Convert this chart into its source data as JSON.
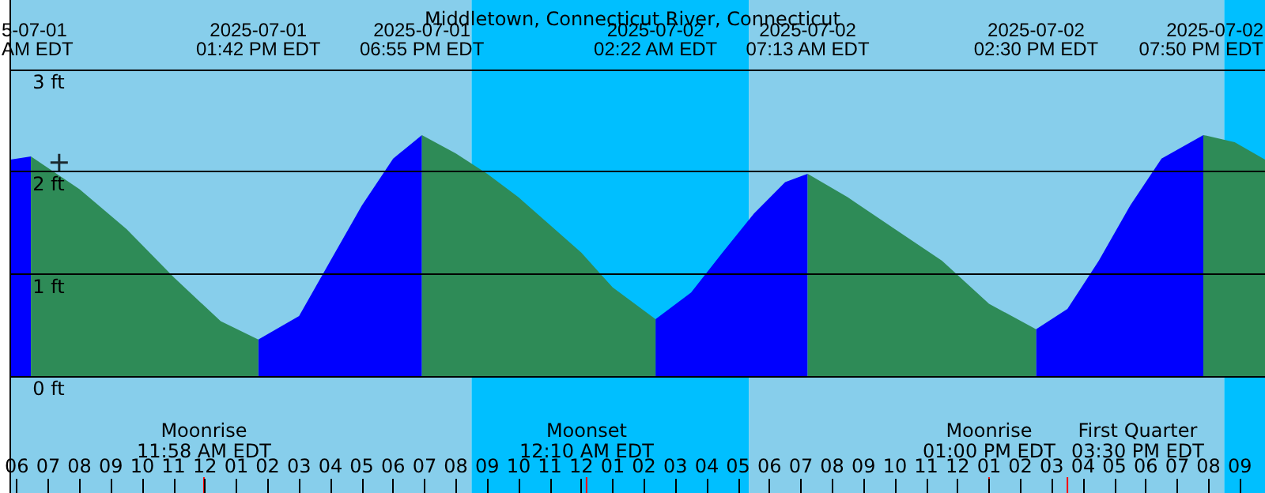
{
  "chart_data": {
    "type": "area",
    "title": "Middletown, Connecticut River, Connecticut",
    "xlim": [
      "2025-07-01T05:48",
      "2025-07-02T21:48"
    ],
    "xticks": [
      {
        "value": "2025-07-01T06:00",
        "label": "06"
      },
      {
        "value": "2025-07-01T07:00",
        "label": "07"
      },
      {
        "value": "2025-07-01T08:00",
        "label": "08"
      },
      {
        "value": "2025-07-01T09:00",
        "label": "09"
      },
      {
        "value": "2025-07-01T10:00",
        "label": "10"
      },
      {
        "value": "2025-07-01T11:00",
        "label": "11"
      },
      {
        "value": "2025-07-01T12:00",
        "label": "12"
      },
      {
        "value": "2025-07-01T13:00",
        "label": "01"
      },
      {
        "value": "2025-07-01T14:00",
        "label": "02"
      },
      {
        "value": "2025-07-01T15:00",
        "label": "03"
      },
      {
        "value": "2025-07-01T16:00",
        "label": "04"
      },
      {
        "value": "2025-07-01T17:00",
        "label": "05"
      },
      {
        "value": "2025-07-01T18:00",
        "label": "06"
      },
      {
        "value": "2025-07-01T19:00",
        "label": "07"
      },
      {
        "value": "2025-07-01T20:00",
        "label": "08"
      },
      {
        "value": "2025-07-01T21:00",
        "label": "09"
      },
      {
        "value": "2025-07-01T22:00",
        "label": "10"
      },
      {
        "value": "2025-07-01T23:00",
        "label": "11"
      },
      {
        "value": "2025-07-02T00:00",
        "label": "12"
      },
      {
        "value": "2025-07-02T01:00",
        "label": "01"
      },
      {
        "value": "2025-07-02T02:00",
        "label": "02"
      },
      {
        "value": "2025-07-02T03:00",
        "label": "03"
      },
      {
        "value": "2025-07-02T04:00",
        "label": "04"
      },
      {
        "value": "2025-07-02T05:00",
        "label": "05"
      },
      {
        "value": "2025-07-02T06:00",
        "label": "06"
      },
      {
        "value": "2025-07-02T07:00",
        "label": "07"
      },
      {
        "value": "2025-07-02T08:00",
        "label": "08"
      },
      {
        "value": "2025-07-02T09:00",
        "label": "09"
      },
      {
        "value": "2025-07-02T10:00",
        "label": "10"
      },
      {
        "value": "2025-07-02T11:00",
        "label": "11"
      },
      {
        "value": "2025-07-02T12:00",
        "label": "12"
      },
      {
        "value": "2025-07-02T13:00",
        "label": "01"
      },
      {
        "value": "2025-07-02T14:00",
        "label": "02"
      },
      {
        "value": "2025-07-02T15:00",
        "label": "03"
      },
      {
        "value": "2025-07-02T16:00",
        "label": "04"
      },
      {
        "value": "2025-07-02T17:00",
        "label": "05"
      },
      {
        "value": "2025-07-02T18:00",
        "label": "06"
      },
      {
        "value": "2025-07-02T19:00",
        "label": "07"
      },
      {
        "value": "2025-07-02T20:00",
        "label": "08"
      },
      {
        "value": "2025-07-02T21:00",
        "label": "09"
      }
    ],
    "ylim": [
      -1.14,
      3.68
    ],
    "yticks": [
      {
        "value": 0,
        "label": "0 ft"
      },
      {
        "value": 1,
        "label": "1 ft"
      },
      {
        "value": 2,
        "label": "2 ft"
      },
      {
        "value": 3,
        "label": "3 ft"
      }
    ],
    "grid": "y",
    "ref_lines": [
      {
        "axis": "x",
        "value": "2025-07-01T11:58",
        "label": "Moonrise\n11:58 AM EDT",
        "color": "#ff0000"
      },
      {
        "axis": "x",
        "value": "2025-07-02T00:10",
        "label": "Moonset\n12:10 AM EDT",
        "color": "#ff0000"
      },
      {
        "axis": "x",
        "value": "2025-07-02T13:00",
        "label": "Moonrise\n01:00 PM EDT",
        "color": "#ff0000"
      },
      {
        "axis": "x",
        "value": "2025-07-02T15:30",
        "label": "First Quarter\n03:30 PM EDT",
        "color": "#ff0000"
      }
    ],
    "bands": [
      {
        "axis": "x",
        "from": "2025-07-01T05:48",
        "to": "2025-07-01T20:30",
        "color": "#87ceeb"
      },
      {
        "axis": "x",
        "from": "2025-07-01T20:30",
        "to": "2025-07-02T05:21",
        "color": "#00bfff"
      },
      {
        "axis": "x",
        "from": "2025-07-02T05:21",
        "to": "2025-07-02T20:30",
        "color": "#87ceeb"
      },
      {
        "axis": "x",
        "from": "2025-07-02T20:30",
        "to": "2025-07-02T21:48",
        "color": "#00bfff"
      }
    ],
    "series": [
      {
        "color": "#0000ff",
        "x": [
          "2025-07-01T05:48",
          "2025-07-01T06:27",
          "2025-07-01T10:00",
          "2025-07-01T13:42",
          "2025-07-01T15:00",
          "2025-07-01T16:00",
          "2025-07-01T17:00",
          "2025-07-01T18:00",
          "2025-07-01T18:55",
          "2025-07-01T22:00",
          "2025-07-02T02:22",
          "2025-07-02T03:30",
          "2025-07-02T04:30",
          "2025-07-02T05:30",
          "2025-07-02T06:30",
          "2025-07-02T07:13",
          "2025-07-02T11:00",
          "2025-07-02T14:30",
          "2025-07-02T15:30",
          "2025-07-02T16:30",
          "2025-07-02T17:30",
          "2025-07-02T18:30",
          "2025-07-02T19:50"
        ],
        "values": [
          2.12,
          2.15,
          null,
          0.36,
          0.59,
          1.13,
          1.67,
          2.13,
          2.36,
          null,
          0.56,
          0.82,
          1.21,
          1.59,
          1.9,
          1.98,
          null,
          0.46,
          0.66,
          1.13,
          1.67,
          2.13,
          2.36
        ]
      },
      {
        "color": "#2e8b57",
        "x": [
          "2025-07-01T06:27",
          "2025-07-01T08:00",
          "2025-07-01T09:30",
          "2025-07-01T11:00",
          "2025-07-01T12:30",
          "2025-07-01T13:42",
          "2025-07-01T16:00",
          "2025-07-01T18:55",
          "2025-07-01T20:00",
          "2025-07-01T21:00",
          "2025-07-01T22:00",
          "2025-07-01T23:00",
          "2025-07-02T00:00",
          "2025-07-02T01:00",
          "2025-07-02T02:22",
          "2025-07-02T05:00",
          "2025-07-02T07:13",
          "2025-07-02T08:30",
          "2025-07-02T10:00",
          "2025-07-02T11:30",
          "2025-07-02T13:00",
          "2025-07-02T14:30",
          "2025-07-02T17:00",
          "2025-07-02T19:50",
          "2025-07-02T20:50",
          "2025-07-02T21:48"
        ],
        "values": [
          2.15,
          1.83,
          1.44,
          0.97,
          0.54,
          0.36,
          null,
          2.36,
          2.18,
          1.98,
          1.75,
          1.48,
          1.21,
          0.87,
          0.56,
          null,
          1.98,
          1.75,
          1.44,
          1.13,
          0.71,
          0.46,
          null,
          2.36,
          2.29,
          2.12
        ]
      },
      {
        "type": "scatter",
        "marker": "cross",
        "color": "#000000",
        "x": [
          "2025-07-01T07:21"
        ],
        "values": [
          2.09
        ]
      }
    ],
    "annotations": [
      "5-07-01\nAM EDT",
      "2025-07-01\n01:42 PM EDT",
      "2025-07-01\n06:55 PM EDT",
      "2025-07-02\n02:22 AM EDT",
      "2025-07-02\n07:13 AM EDT",
      "2025-07-02\n02:30 PM EDT",
      "2025-07-02\n07:50 PM EDT"
    ]
  }
}
